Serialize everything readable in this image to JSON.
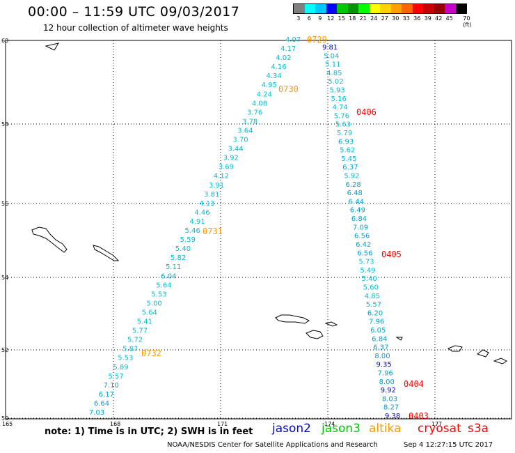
{
  "title": "00:00 – 11:59 UTC 09/03/2017",
  "subtitle": "12 hour collection of altimeter wave heights",
  "colorbar": {
    "labels": [
      "3",
      "6",
      "9",
      "12",
      "15",
      "18",
      "21",
      "24",
      "27",
      "30",
      "33",
      "36",
      "39",
      "42",
      "45",
      "70 (ft)"
    ],
    "colors": [
      "#7f7f7f",
      "#00ffff",
      "#00c8ff",
      "#0000ff",
      "#00c800",
      "#009600",
      "#00ff00",
      "#ffff00",
      "#ffd200",
      "#ffa000",
      "#ff6400",
      "#ff0000",
      "#c80000",
      "#960000",
      "#c800c8",
      "#000000"
    ]
  },
  "map": {
    "lat_labels": [
      "60",
      "58",
      "56",
      "54",
      "52",
      "50"
    ],
    "lon_labels": [
      "165",
      "168",
      "171",
      "174",
      "177"
    ]
  },
  "tracks": [
    {
      "color": "#00bcd4",
      "values": [
        "4.07",
        "4.17",
        "4.02",
        "4.16",
        "4.34",
        "4.95",
        "4.24",
        "4.08",
        "3.76",
        "3.78",
        "3.64",
        "3.70",
        "3.44",
        "3.92",
        "3.69",
        "4.12",
        "3.91",
        "3.81",
        "4.13",
        "4.46",
        "4.91",
        "5.46",
        "5.59",
        "5.40",
        "5.82",
        "5.11",
        "6.04",
        "5.64",
        "5.53",
        "5.00",
        "5.64",
        "5.41",
        "5.77",
        "5.72",
        "5.87",
        "5.53",
        "5.89",
        "5.57",
        "7.10",
        "6.17",
        "6.64",
        "7.03"
      ]
    },
    {
      "color": "#00bcd4",
      "values": [
        "9.81",
        "5.04",
        "5.11",
        "4.85",
        "5.02",
        "5.93",
        "5.16",
        "4.74",
        "5.76",
        "5.63",
        "5.79",
        "6.93",
        "5.62",
        "5.45",
        "6.37",
        "5.92",
        "6.28",
        "6.48",
        "6.44",
        "6.49",
        "6.84",
        "7.09",
        "6.56",
        "6.42",
        "6.56",
        "5.73",
        "5.49",
        "5.40",
        "5.60",
        "4.85",
        "5.57",
        "6.20",
        "7.96",
        "6.05",
        "6.84",
        "6.37",
        "8.00",
        "9.35",
        "7.96",
        "8.00",
        "9.92",
        "8.03",
        "8.27",
        "9.38"
      ]
    }
  ],
  "time_labels": [
    {
      "text": "0729",
      "color": "#ff9800"
    },
    {
      "text": "0730",
      "color": "#ff9800"
    },
    {
      "text": "0731",
      "color": "#ff9800"
    },
    {
      "text": "0732",
      "color": "#ff9800"
    },
    {
      "text": "0406",
      "color": "#ff0000"
    },
    {
      "text": "0405",
      "color": "#ff0000"
    },
    {
      "text": "0404",
      "color": "#ff0000"
    },
    {
      "text": "0403",
      "color": "#ff0000"
    }
  ],
  "note": "note:  1) Time is in UTC;  2) SWH is in feet",
  "legend": [
    {
      "label": "jason2",
      "color": "#0000ff"
    },
    {
      "label": "jason3",
      "color": "#00c800"
    },
    {
      "label": "altika",
      "color": "#ff9800"
    },
    {
      "label": "cryosat",
      "color": "#ff0000"
    },
    {
      "label": "s3a",
      "color": "#ff0000"
    }
  ],
  "footer": "NOAA/NESDIS Center for Satellite Applications and Research",
  "footer_date": "Sep  4 12:27:15 UTC 2017"
}
